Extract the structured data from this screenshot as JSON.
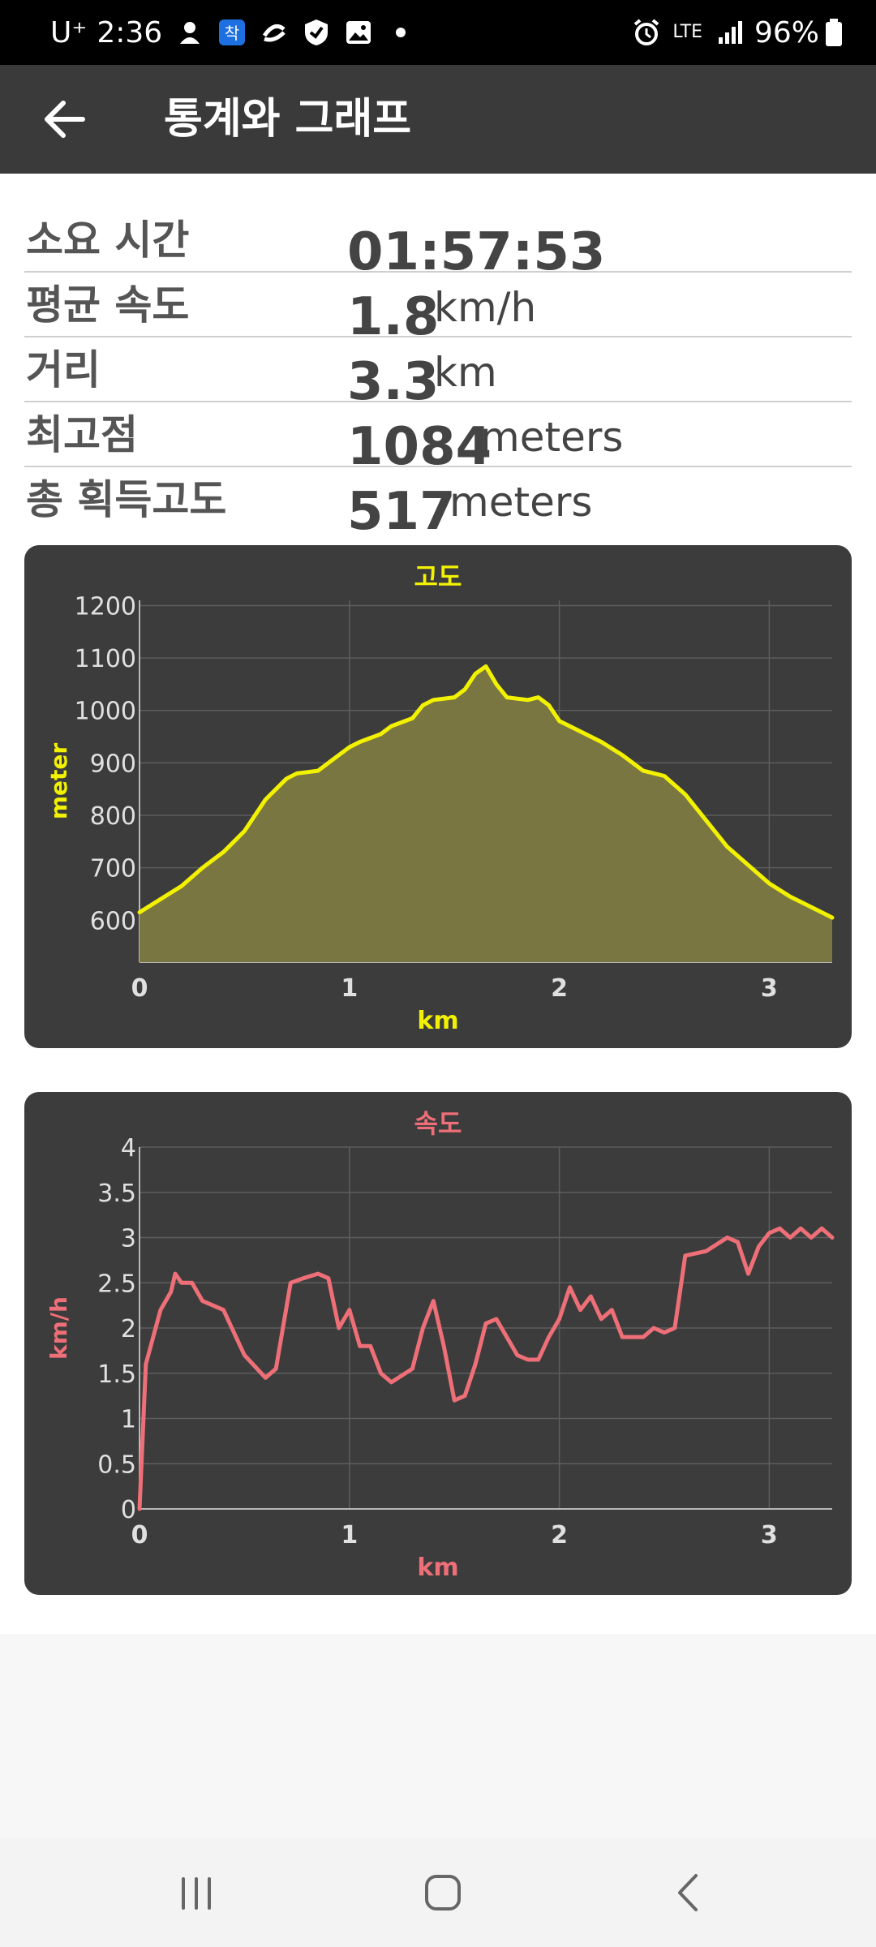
{
  "status_bar": {
    "carrier": "U⁺",
    "time": "2:36",
    "network": "LTE",
    "battery": "96%",
    "icons": [
      "hands-icon",
      "app-icon",
      "sync-icon",
      "shield-icon",
      "image-icon",
      "dot-icon",
      "alarm-icon",
      "signal-icon",
      "battery-icon"
    ]
  },
  "app_bar": {
    "title": "통계와 그래프",
    "back_icon": "arrow-left-icon"
  },
  "stats": [
    {
      "label": "소요 시간",
      "value": "01:57:53",
      "unit": ""
    },
    {
      "label": "평균 속도",
      "value": "1.8",
      "unit": "km/h"
    },
    {
      "label": "거리",
      "value": "3.3",
      "unit": "km"
    },
    {
      "label": "최고점",
      "value": "1084",
      "unit": "meters"
    },
    {
      "label": "총 획득고도",
      "value": "517",
      "unit": "meters"
    }
  ],
  "chart_data": [
    {
      "type": "area",
      "title": "고도",
      "xlabel": "km",
      "ylabel": "meter",
      "xlim": [
        0,
        3.3
      ],
      "ylim": [
        520,
        1210
      ],
      "x_ticks": [
        "0",
        "1",
        "2",
        "3"
      ],
      "y_ticks": [
        "600",
        "700",
        "800",
        "900",
        "1000",
        "1100",
        "1200"
      ],
      "grid": true,
      "line_color": "#f2f200",
      "fill_color": "#7a7642",
      "x": [
        0,
        0.1,
        0.2,
        0.3,
        0.4,
        0.5,
        0.6,
        0.7,
        0.75,
        0.85,
        0.9,
        1.0,
        1.05,
        1.15,
        1.2,
        1.3,
        1.35,
        1.4,
        1.5,
        1.55,
        1.6,
        1.65,
        1.7,
        1.75,
        1.85,
        1.9,
        1.95,
        2.0,
        2.1,
        2.2,
        2.3,
        2.4,
        2.5,
        2.6,
        2.7,
        2.8,
        2.9,
        3.0,
        3.1,
        3.2,
        3.3
      ],
      "y": [
        615,
        640,
        665,
        700,
        730,
        770,
        830,
        870,
        880,
        885,
        900,
        930,
        940,
        955,
        970,
        985,
        1010,
        1020,
        1025,
        1040,
        1070,
        1084,
        1050,
        1025,
        1020,
        1025,
        1010,
        980,
        960,
        940,
        915,
        885,
        875,
        840,
        790,
        740,
        705,
        670,
        645,
        625,
        605
      ]
    },
    {
      "type": "line",
      "title": "속도",
      "xlabel": "km",
      "ylabel": "km/h",
      "xlim": [
        0,
        3.3
      ],
      "ylim": [
        0,
        4
      ],
      "x_ticks": [
        "0",
        "1",
        "2",
        "3"
      ],
      "y_ticks": [
        "0",
        "0.5",
        "1",
        "1.5",
        "2",
        "2.5",
        "3",
        "3.5",
        "4"
      ],
      "grid": true,
      "line_color": "#ee6f77",
      "x": [
        0,
        0.03,
        0.1,
        0.15,
        0.17,
        0.2,
        0.25,
        0.3,
        0.4,
        0.5,
        0.6,
        0.65,
        0.72,
        0.78,
        0.85,
        0.9,
        0.95,
        1.0,
        1.05,
        1.1,
        1.15,
        1.2,
        1.3,
        1.35,
        1.4,
        1.45,
        1.5,
        1.55,
        1.6,
        1.65,
        1.7,
        1.8,
        1.85,
        1.9,
        1.95,
        2.0,
        2.05,
        2.1,
        2.15,
        2.2,
        2.25,
        2.3,
        2.35,
        2.4,
        2.45,
        2.5,
        2.55,
        2.6,
        2.7,
        2.8,
        2.85,
        2.9,
        2.95,
        3.0,
        3.05,
        3.1,
        3.15,
        3.2,
        3.25,
        3.3
      ],
      "y": [
        0,
        1.6,
        2.2,
        2.4,
        2.6,
        2.5,
        2.5,
        2.3,
        2.2,
        1.7,
        1.45,
        1.55,
        2.5,
        2.55,
        2.6,
        2.55,
        2.0,
        2.2,
        1.8,
        1.8,
        1.5,
        1.4,
        1.55,
        2.0,
        2.3,
        1.8,
        1.2,
        1.25,
        1.6,
        2.05,
        2.1,
        1.7,
        1.65,
        1.65,
        1.9,
        2.1,
        2.45,
        2.2,
        2.35,
        2.1,
        2.2,
        1.9,
        1.9,
        1.9,
        2.0,
        1.95,
        2.0,
        2.8,
        2.85,
        3.0,
        2.95,
        2.6,
        2.9,
        3.05,
        3.1,
        3.0,
        3.1,
        3.0,
        3.1,
        3.0
      ]
    }
  ],
  "nav_bar": {
    "icons": [
      "recents-icon",
      "home-icon",
      "back-icon"
    ]
  }
}
